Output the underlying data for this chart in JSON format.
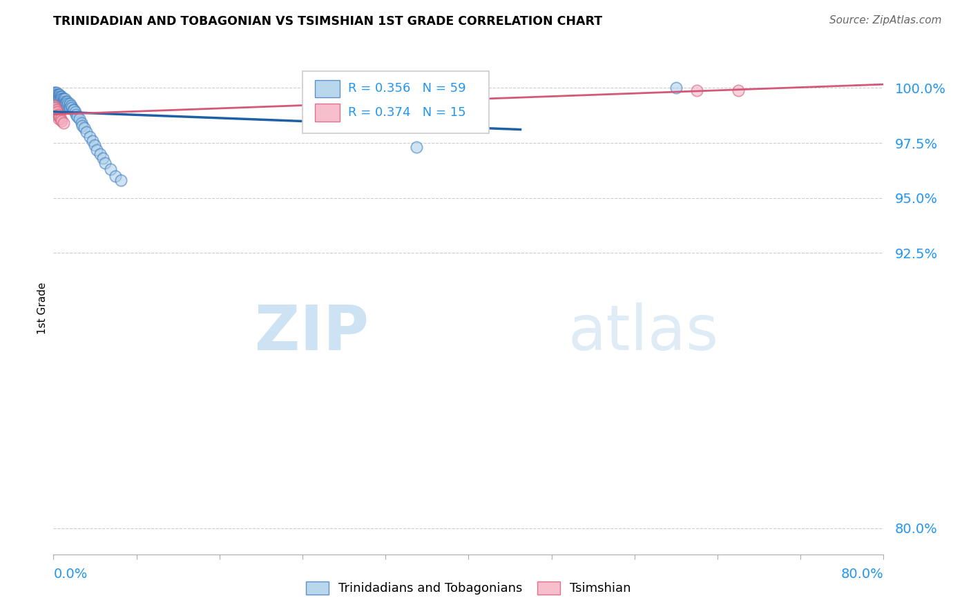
{
  "title": "TRINIDADIAN AND TOBAGONIAN VS TSIMSHIAN 1ST GRADE CORRELATION CHART",
  "source": "Source: ZipAtlas.com",
  "ylabel": "1st Grade",
  "ytick_vals": [
    0.8,
    0.925,
    0.95,
    0.975,
    1.0
  ],
  "ytick_labels": [
    "80.0%",
    "92.5%",
    "95.0%",
    "97.5%",
    "100.0%"
  ],
  "xmin": 0.0,
  "xmax": 0.8,
  "ymin": 0.788,
  "ymax": 1.012,
  "blue_r": 0.356,
  "blue_n": 59,
  "pink_r": 0.374,
  "pink_n": 15,
  "blue_color": "#a8cde8",
  "blue_edge_color": "#3a7abf",
  "pink_color": "#f5b0c0",
  "pink_edge_color": "#d45878",
  "blue_line_color": "#1f5fa6",
  "pink_line_color": "#d45878",
  "legend_color": "#2196F3",
  "watermark_color": "#daeaf5",
  "blue_label": "Trinidadians and Tobagonians",
  "pink_label": "Tsimshian",
  "blue_x": [
    0.001,
    0.001,
    0.001,
    0.002,
    0.002,
    0.003,
    0.003,
    0.003,
    0.004,
    0.004,
    0.005,
    0.005,
    0.005,
    0.006,
    0.006,
    0.006,
    0.007,
    0.007,
    0.008,
    0.008,
    0.009,
    0.009,
    0.01,
    0.01,
    0.01,
    0.011,
    0.011,
    0.012,
    0.012,
    0.013,
    0.013,
    0.014,
    0.015,
    0.016,
    0.016,
    0.017,
    0.018,
    0.019,
    0.02,
    0.021,
    0.022,
    0.023,
    0.025,
    0.027,
    0.028,
    0.03,
    0.032,
    0.035,
    0.038,
    0.04,
    0.042,
    0.045,
    0.048,
    0.05,
    0.055,
    0.06,
    0.065,
    0.35,
    0.6
  ],
  "blue_y": [
    0.998,
    0.997,
    0.996,
    0.998,
    0.997,
    0.998,
    0.997,
    0.996,
    0.997,
    0.996,
    0.997,
    0.996,
    0.995,
    0.997,
    0.996,
    0.995,
    0.996,
    0.995,
    0.996,
    0.995,
    0.995,
    0.994,
    0.995,
    0.994,
    0.993,
    0.995,
    0.993,
    0.994,
    0.993,
    0.994,
    0.992,
    0.993,
    0.992,
    0.993,
    0.991,
    0.992,
    0.991,
    0.99,
    0.99,
    0.989,
    0.988,
    0.987,
    0.986,
    0.984,
    0.983,
    0.982,
    0.98,
    0.978,
    0.976,
    0.974,
    0.972,
    0.97,
    0.968,
    0.966,
    0.963,
    0.96,
    0.958,
    0.973,
    1.0
  ],
  "pink_x": [
    0.001,
    0.001,
    0.002,
    0.002,
    0.003,
    0.003,
    0.004,
    0.005,
    0.005,
    0.006,
    0.007,
    0.008,
    0.01,
    0.62,
    0.66
  ],
  "pink_y": [
    0.992,
    0.99,
    0.991,
    0.989,
    0.99,
    0.988,
    0.989,
    0.988,
    0.986,
    0.987,
    0.986,
    0.985,
    0.984,
    0.999,
    0.999
  ]
}
